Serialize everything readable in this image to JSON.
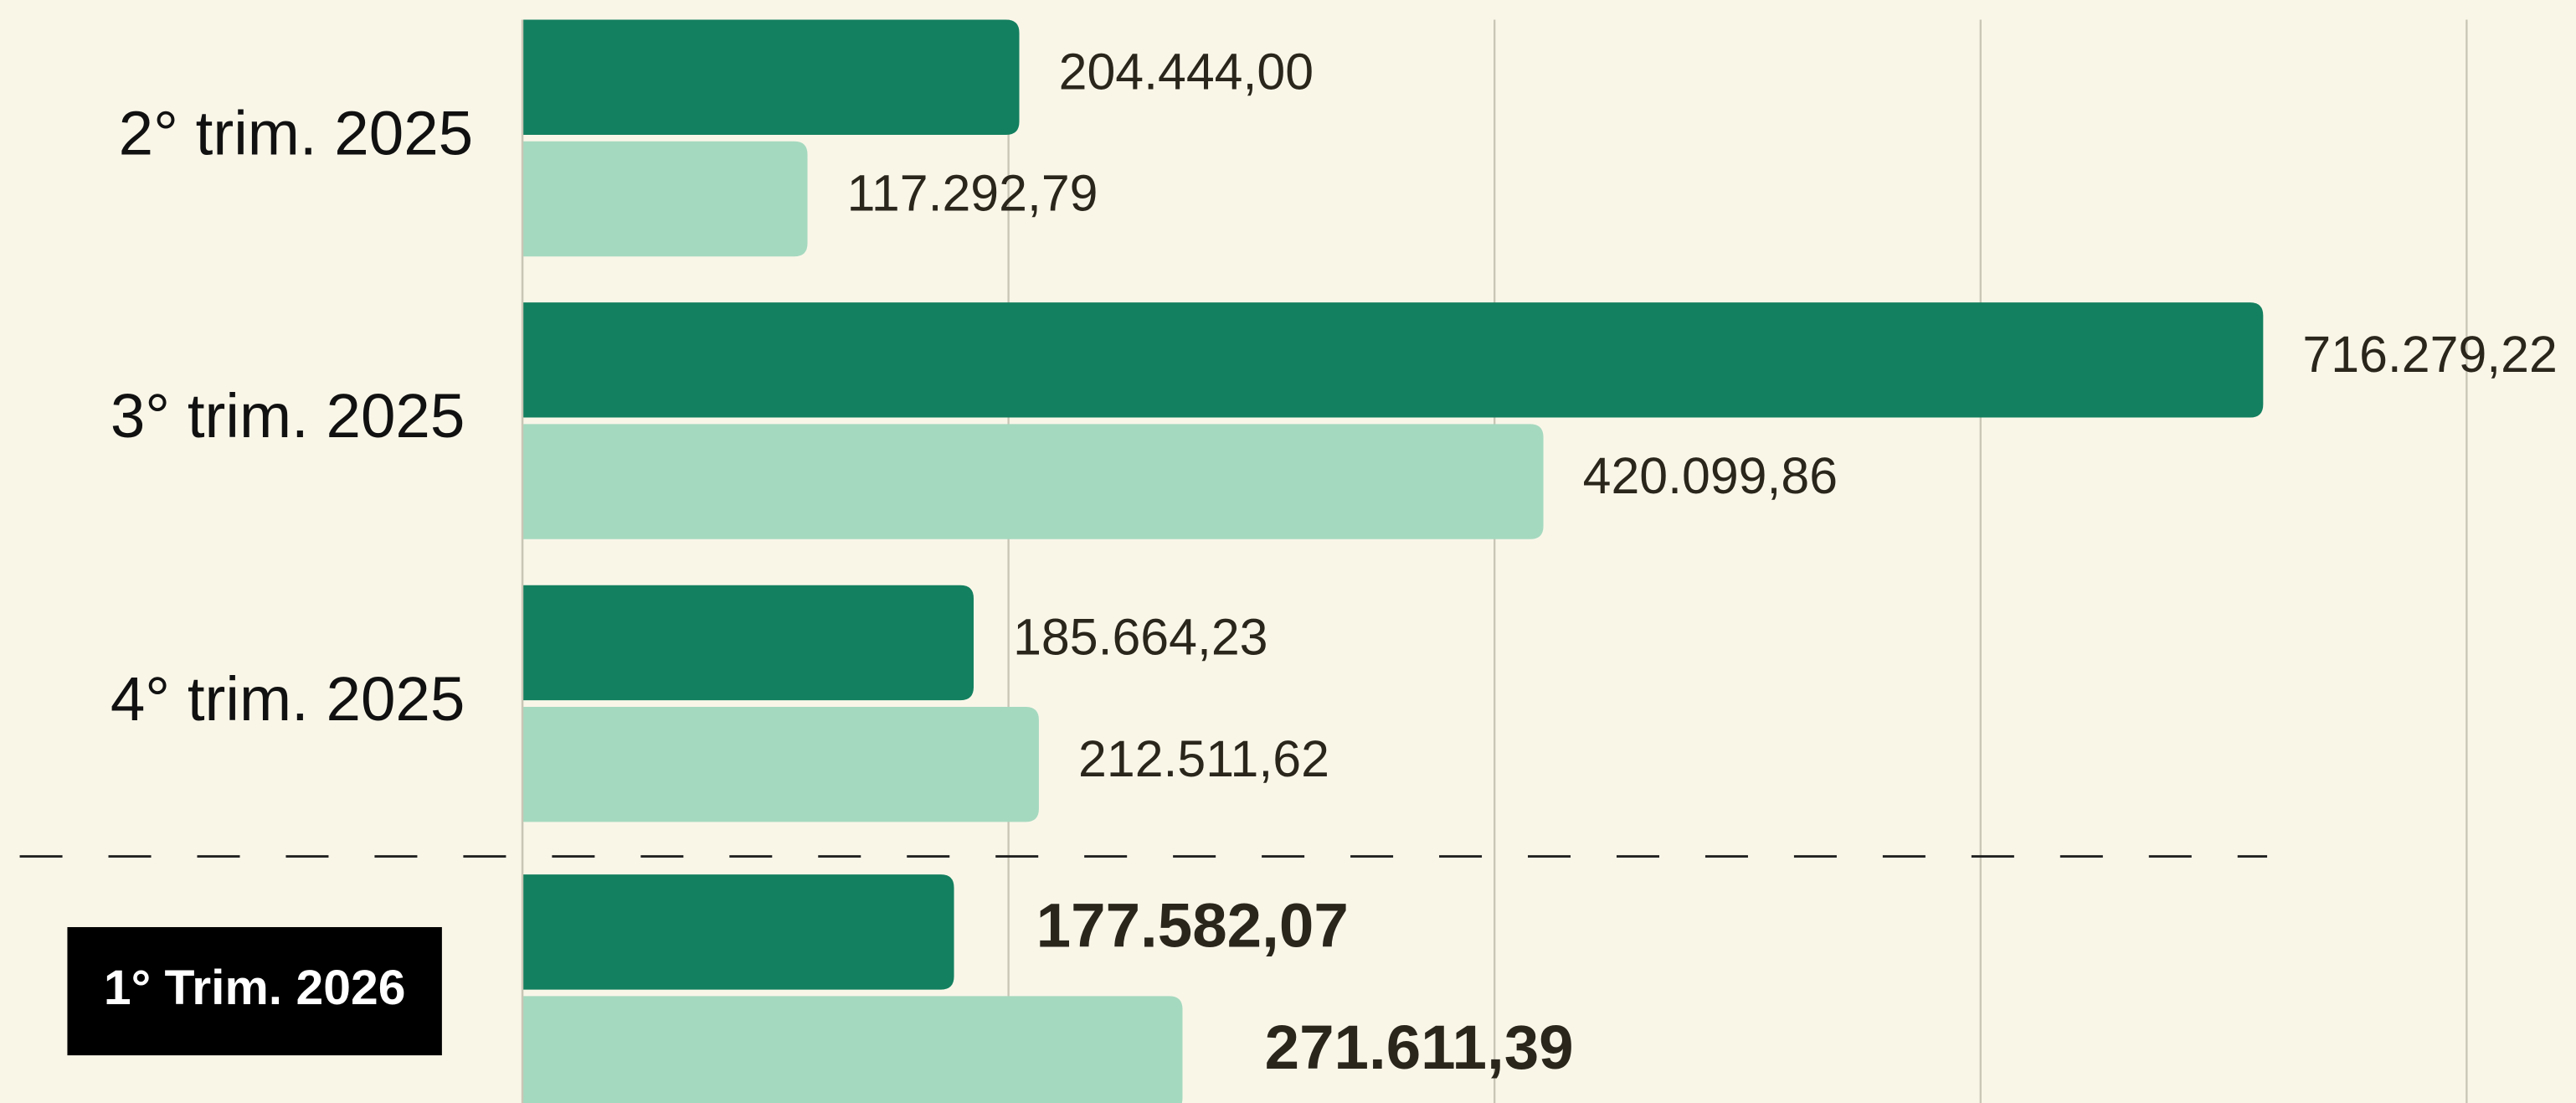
{
  "chart_data": {
    "type": "hbar",
    "categories": [
      "2° trim. 2025",
      "3° trim. 2025",
      "4° trim. 2025",
      "1° Trim. 2026"
    ],
    "series": [
      {
        "color": "#13805f",
        "values": [
          204444.0,
          716279.22,
          185664.23,
          177582.07
        ],
        "value_labels": [
          "204.444,00",
          "716.279,22",
          "185.664,23",
          "177.582,07"
        ]
      },
      {
        "color": "#a5d9bf",
        "values": [
          117292.79,
          420099.86,
          212511.62,
          271611.39
        ],
        "value_labels": [
          "117.292,79",
          "420.099,86",
          "212.511,62",
          "271.611,39"
        ]
      }
    ],
    "xlim": [
      0,
      845000
    ],
    "xticks": [
      0,
      200000,
      400000,
      600000,
      800000
    ],
    "grid": true
  }
}
